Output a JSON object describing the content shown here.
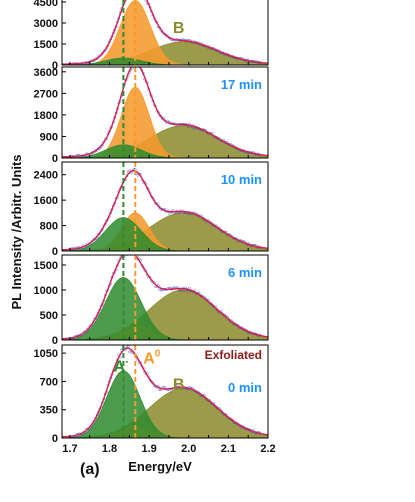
{
  "figure": {
    "panel_label": "(a)",
    "xlabel": "Energy/eV",
    "ylabel": "PL Intensity /Arbitr. Units",
    "x_ticks": [
      "1.7",
      "1.8",
      "1.9",
      "2.0",
      "2.1",
      "2.2"
    ],
    "colors": {
      "A_minus": "#2e8b2e",
      "A0": "#f59a2e",
      "B": "#8a8a2a",
      "fit": "#d6204a",
      "data_points": "#3a3ad8",
      "time_label": "#1e90ff",
      "exfoliated_label": "#8b1a1a"
    }
  },
  "chart_data": [
    {
      "type": "area",
      "time_label": "",
      "y_ticks": [
        "0",
        "1500",
        "3000",
        "4500"
      ],
      "ylim": [
        0,
        5000
      ],
      "vlines_x": [
        1.835,
        1.865
      ],
      "peaks": [
        {
          "name": "A-",
          "center": 1.835,
          "width": 0.045,
          "amplitude": 500
        },
        {
          "name": "A0",
          "center": 1.865,
          "width": 0.038,
          "amplitude": 4600
        },
        {
          "name": "B",
          "center": 1.985,
          "width": 0.085,
          "amplitude": 1650
        }
      ],
      "annotations": [
        {
          "text": "B",
          "x": 1.96,
          "y": 2300
        }
      ]
    },
    {
      "type": "area",
      "time_label": "17 min",
      "y_ticks": [
        "0",
        "900",
        "1800",
        "2700",
        "3600"
      ],
      "ylim": [
        0,
        3800
      ],
      "vlines_x": [
        1.835,
        1.865
      ],
      "peaks": [
        {
          "name": "A-",
          "center": 1.835,
          "width": 0.045,
          "amplitude": 550
        },
        {
          "name": "A0",
          "center": 1.865,
          "width": 0.035,
          "amplitude": 2950
        },
        {
          "name": "B",
          "center": 1.985,
          "width": 0.085,
          "amplitude": 1350
        }
      ],
      "annotations": []
    },
    {
      "type": "area",
      "time_label": "10 min",
      "y_ticks": [
        "0",
        "800",
        "1600",
        "2400"
      ],
      "ylim": [
        0,
        2800
      ],
      "vlines_x": [
        1.835,
        1.865
      ],
      "peaks": [
        {
          "name": "A-",
          "center": 1.835,
          "width": 0.045,
          "amplitude": 1050
        },
        {
          "name": "A0",
          "center": 1.865,
          "width": 0.035,
          "amplitude": 1200
        },
        {
          "name": "B",
          "center": 1.985,
          "width": 0.085,
          "amplitude": 1200
        }
      ],
      "annotations": []
    },
    {
      "type": "area",
      "time_label": "6 min",
      "y_ticks": [
        "0",
        "500",
        "1000",
        "1500"
      ],
      "ylim": [
        0,
        1700
      ],
      "vlines_x": [
        1.835,
        1.865
      ],
      "peaks": [
        {
          "name": "A-",
          "center": 1.835,
          "width": 0.045,
          "amplitude": 1250
        },
        {
          "name": "A0",
          "center": 1.865,
          "width": 0.038,
          "amplitude": 300
        },
        {
          "name": "B",
          "center": 1.985,
          "width": 0.085,
          "amplitude": 1000
        }
      ],
      "annotations": []
    },
    {
      "type": "area",
      "time_label": "0 min",
      "extra_label": "Exfoliated",
      "y_ticks": [
        "0",
        "350",
        "700",
        "1050"
      ],
      "ylim": [
        0,
        1150
      ],
      "vlines_x": [
        1.835,
        1.865
      ],
      "peaks": [
        {
          "name": "A-",
          "center": 1.835,
          "width": 0.042,
          "amplitude": 830
        },
        {
          "name": "A0",
          "center": 1.865,
          "width": 0.04,
          "amplitude": 150
        },
        {
          "name": "B",
          "center": 1.985,
          "width": 0.085,
          "amplitude": 610
        }
      ],
      "annotations": [
        {
          "text": "A-",
          "x": 1.81,
          "y": 820
        },
        {
          "text": "A0",
          "x": 1.885,
          "y": 920
        },
        {
          "text": "B",
          "x": 1.96,
          "y": 600
        }
      ]
    }
  ]
}
